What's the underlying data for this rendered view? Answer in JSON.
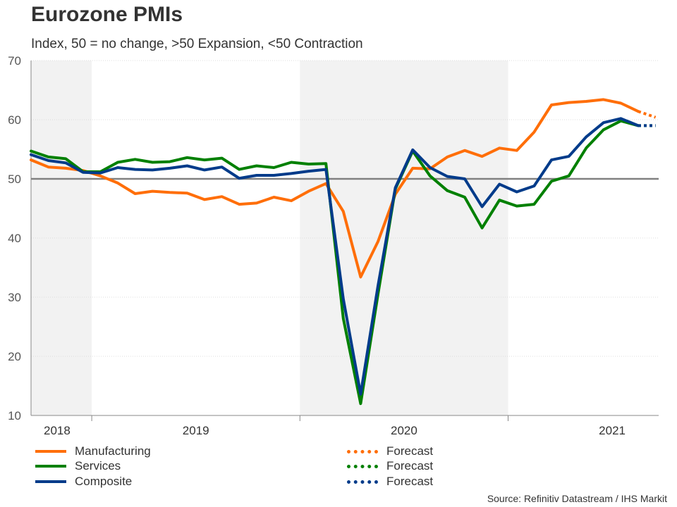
{
  "title": "Eurozone PMIs",
  "subtitle": "Index, 50 = no change, >50 Expansion, <50 Contraction",
  "source": "Source: Refinitiv Datastream / IHS Markit",
  "colors": {
    "manufacturing": "#ff6e08",
    "services": "#008000",
    "composite": "#003b8a",
    "reference": "#808080",
    "shade": "#f2f2f2"
  },
  "chart_data": {
    "type": "line",
    "title": "Eurozone PMIs",
    "subtitle": "Index, 50 = no change, >50 Expansion, <50 Contraction",
    "ylim": [
      10,
      70
    ],
    "yticks": [
      10,
      20,
      30,
      40,
      50,
      60,
      70
    ],
    "reference_line": 50,
    "x_start": "2018-09",
    "x_labels": [
      {
        "label": "2018",
        "center": 1.5
      },
      {
        "label": "2019",
        "center": 9.5
      },
      {
        "label": "2020",
        "center": 21.5
      },
      {
        "label": "2021",
        "center": 33.5
      }
    ],
    "year_boundaries": [
      3.5,
      15.5,
      27.5
    ],
    "shaded_years": [
      [
        -0.5,
        3.5
      ],
      [
        15.5,
        27.5
      ]
    ],
    "series": [
      {
        "name": "Manufacturing",
        "key": "manufacturing",
        "values": [
          53.2,
          52.0,
          51.8,
          51.4,
          50.5,
          49.3,
          47.5,
          47.9,
          47.7,
          47.6,
          46.5,
          47.0,
          45.7,
          45.9,
          46.9,
          46.3,
          47.9,
          49.2,
          44.5,
          33.4,
          39.4,
          47.4,
          51.8,
          51.7,
          53.7,
          54.8,
          53.8,
          55.2,
          54.8,
          57.9,
          62.5,
          62.9,
          63.1,
          63.4,
          62.8,
          61.4
        ],
        "forecast": [
          61.4,
          60.4
        ]
      },
      {
        "name": "Services",
        "key": "services",
        "values": [
          54.7,
          53.7,
          53.4,
          51.2,
          51.2,
          52.8,
          53.3,
          52.8,
          52.9,
          53.6,
          53.2,
          53.5,
          51.6,
          52.2,
          51.9,
          52.8,
          52.5,
          52.6,
          26.4,
          12.0,
          30.5,
          48.3,
          54.7,
          50.5,
          48.0,
          46.9,
          41.7,
          46.4,
          45.4,
          45.7,
          49.6,
          50.5,
          55.2,
          58.3,
          59.8,
          59.0
        ],
        "forecast": [
          59.0,
          59.0
        ]
      },
      {
        "name": "Composite",
        "key": "composite",
        "values": [
          54.1,
          53.1,
          52.7,
          51.1,
          51.0,
          51.9,
          51.6,
          51.5,
          51.8,
          52.2,
          51.5,
          52.0,
          50.1,
          50.6,
          50.6,
          50.9,
          51.3,
          51.6,
          29.7,
          13.6,
          31.9,
          48.5,
          54.9,
          51.9,
          50.4,
          50.0,
          45.3,
          49.1,
          47.8,
          48.8,
          53.2,
          53.8,
          57.1,
          59.5,
          60.2,
          59.0
        ],
        "forecast": [
          59.0,
          59.0
        ]
      }
    ]
  },
  "legend": [
    {
      "label": "Manufacturing",
      "key": "manufacturing",
      "style": "solid"
    },
    {
      "label": "Services",
      "key": "services",
      "style": "solid"
    },
    {
      "label": "Composite",
      "key": "composite",
      "style": "solid"
    },
    {
      "label": "Forecast",
      "key": "manufacturing",
      "style": "dotted"
    },
    {
      "label": "Forecast",
      "key": "services",
      "style": "dotted"
    },
    {
      "label": "Forecast",
      "key": "composite",
      "style": "dotted"
    }
  ]
}
